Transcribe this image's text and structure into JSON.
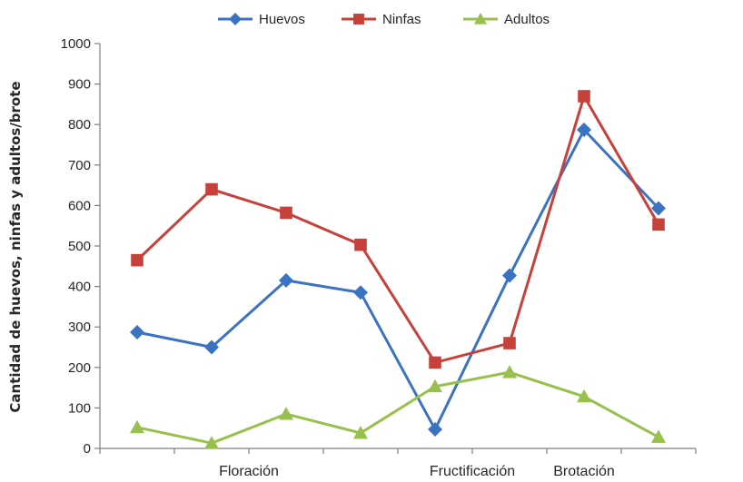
{
  "chart_data": {
    "type": "line",
    "ylabel": "Cantidad de huevos, ninfas y adultos/brote",
    "xlabel": "",
    "ylim": [
      0,
      1000
    ],
    "yticks": [
      0,
      100,
      200,
      300,
      400,
      500,
      600,
      700,
      800,
      900,
      1000
    ],
    "x": [
      1,
      2,
      3,
      4,
      5,
      6,
      7,
      8
    ],
    "category_labels": [
      {
        "label": "Floración",
        "at": 2.5
      },
      {
        "label": "Fructificación",
        "at": 5.5
      },
      {
        "label": "Brotación",
        "at": 7
      }
    ],
    "legend_position": "top",
    "grid": false,
    "series": [
      {
        "name": "Huevos",
        "color": "#3b73c3",
        "marker": "diamond",
        "values": [
          287,
          250,
          415,
          385,
          47,
          427,
          787,
          593
        ]
      },
      {
        "name": "Ninfas",
        "color": "#c7413b",
        "marker": "square",
        "values": [
          465,
          640,
          582,
          503,
          212,
          260,
          870,
          553
        ]
      },
      {
        "name": "Adultos",
        "color": "#98c04c",
        "marker": "triangle",
        "values": [
          52,
          13,
          85,
          38,
          153,
          188,
          128,
          28
        ]
      }
    ]
  }
}
